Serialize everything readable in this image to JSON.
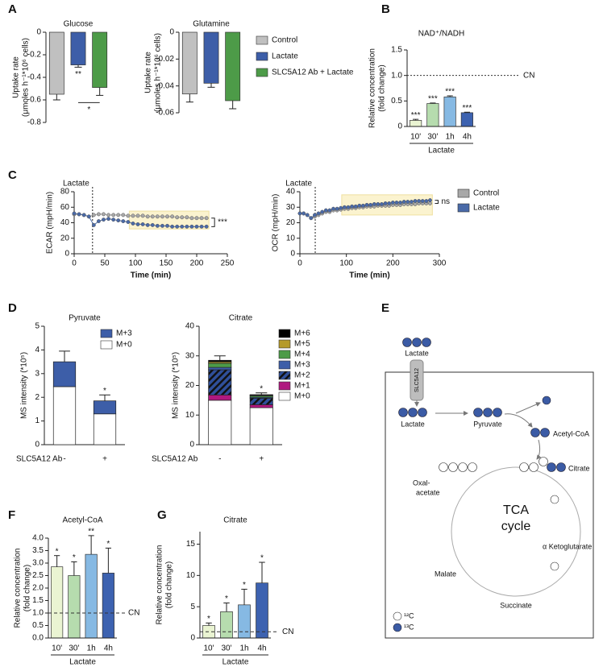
{
  "panels": [
    "A",
    "B",
    "C",
    "D",
    "E",
    "F",
    "G"
  ],
  "chart_data": [
    {
      "type": "bar",
      "title": "Glucose",
      "ylabel": [
        "Uptake rate",
        "(μmoles h⁻¹*10⁶ cells)"
      ],
      "categories": [
        null,
        null,
        null
      ],
      "values": [
        -0.55,
        -0.29,
        -0.49
      ],
      "errors": [
        0.05,
        0.02,
        0.07
      ],
      "colors": [
        "#c0c0c0",
        "#3d5ea8",
        "#4d9b48"
      ],
      "annotations": [
        null,
        "**",
        null
      ],
      "comparison": "*",
      "ylim": [
        -0.8,
        0
      ],
      "yticks": [
        0,
        -0.2,
        -0.4,
        -0.6,
        -0.8
      ]
    },
    {
      "type": "bar",
      "title": "Glutamine",
      "ylabel": [
        "Uptake rate",
        "(μmoles h⁻¹*10⁶ cells)"
      ],
      "categories": [
        null,
        null,
        null
      ],
      "values": [
        -0.046,
        -0.038,
        -0.051
      ],
      "errors": [
        0.006,
        0.003,
        0.006
      ],
      "colors": [
        "#c0c0c0",
        "#3d5ea8",
        "#4d9b48"
      ],
      "ylim": [
        -0.06,
        0
      ],
      "yticks": [
        0,
        -0.02,
        -0.04,
        -0.06
      ],
      "legend": [
        {
          "name": "Control",
          "color": "#c0c0c0"
        },
        {
          "name": "Lactate",
          "color": "#3d5ea8"
        },
        {
          "name": "SLC5A12 Ab + Lactate",
          "color": "#4d9b48"
        }
      ]
    },
    {
      "type": "bar",
      "title": "NAD⁺/NADH",
      "ylabel": [
        "Relative concentration",
        "(fold change)"
      ],
      "categories": [
        "10'",
        "30'",
        "1h",
        "4h"
      ],
      "group_label": "Lactate",
      "values": [
        0.12,
        0.45,
        0.58,
        0.27
      ],
      "errors": [
        0.02,
        0.01,
        0.02,
        0.01
      ],
      "colors": [
        "#eaf4d2",
        "#b6dcae",
        "#86b9e3",
        "#3d62b0"
      ],
      "annotations": [
        "***",
        "***",
        "***",
        "***"
      ],
      "reference": {
        "value": 1,
        "label": "CN",
        "style": "dotted"
      },
      "ylim": [
        0,
        1.5
      ],
      "yticks": [
        0,
        0.5,
        {
          "value": 1,
          "label": "1.0"
        },
        1.5
      ]
    },
    {
      "type": "line",
      "ylabel": "ECAR (mpH/min)",
      "xlabel": "Time (min)",
      "x": [
        0,
        8,
        16,
        24,
        32,
        40,
        48,
        56,
        64,
        72,
        80,
        88,
        96,
        104,
        112,
        120,
        128,
        136,
        144,
        152,
        160,
        168,
        176,
        184,
        192,
        200,
        208,
        216
      ],
      "series": [
        {
          "color": "#a8a8a8",
          "values": [
            51,
            51,
            50,
            48,
            50,
            51,
            51,
            50,
            50,
            50,
            50,
            49,
            49,
            49,
            49,
            48,
            48,
            48,
            48,
            48,
            48,
            47,
            47,
            47,
            46,
            46,
            46,
            46
          ],
          "error": 1.5
        },
        {
          "color": "#4a6aa8",
          "values": [
            52,
            51,
            50,
            48,
            37,
            42,
            44,
            45,
            44,
            43,
            42,
            41,
            39,
            38,
            38,
            37,
            37,
            36,
            36,
            36,
            35,
            35,
            35,
            35,
            35,
            35,
            35,
            35
          ],
          "error": 1.5
        }
      ],
      "event": {
        "x": 30,
        "label": "Lactate"
      },
      "highlight": {
        "x": [
          90,
          220
        ],
        "y": [
          32,
          55
        ]
      },
      "significance": "***",
      "xlim": [
        0,
        250
      ],
      "xticks": [
        0,
        50,
        100,
        150,
        200,
        250
      ],
      "ylim": [
        0,
        80
      ],
      "yticks": [
        0,
        20,
        40,
        60,
        80
      ]
    },
    {
      "type": "line",
      "ylabel": "OCR (mpH/min)",
      "xlabel": "Time (min)",
      "x": [
        0,
        8,
        16,
        24,
        32,
        40,
        48,
        56,
        64,
        72,
        80,
        88,
        96,
        104,
        112,
        120,
        128,
        136,
        144,
        152,
        160,
        168,
        176,
        184,
        192,
        200,
        208,
        216,
        224,
        232,
        240,
        248,
        256,
        264,
        272,
        280
      ],
      "series": [
        {
          "name": "Control",
          "color": "#a8a8a8",
          "values": [
            26,
            26,
            25,
            23,
            24,
            25,
            26,
            27,
            27,
            28,
            28,
            28.5,
            29,
            29,
            29.5,
            29.5,
            30,
            30,
            30.5,
            30.5,
            30.5,
            31,
            31,
            31,
            31,
            31.5,
            31.5,
            31.5,
            32,
            32,
            32,
            32,
            32.5,
            32.5,
            32.5,
            32.5
          ],
          "error": 1.2
        },
        {
          "name": "Lactate",
          "color": "#4a6aa8",
          "values": [
            26,
            26,
            25,
            23,
            25,
            26,
            27,
            28,
            28,
            29,
            29,
            29.5,
            30,
            30,
            30.5,
            30.5,
            31,
            31,
            31.5,
            31.5,
            32,
            32,
            32,
            32.5,
            32.5,
            33,
            33,
            33,
            33.5,
            33.5,
            33.5,
            34,
            34,
            34,
            34,
            34.5
          ],
          "error": 1.2
        }
      ],
      "event": {
        "x": 33,
        "label": "Lactate"
      },
      "highlight": {
        "x": [
          90,
          285
        ],
        "y": [
          25,
          38
        ]
      },
      "significance": "ns",
      "xlim": [
        0,
        300
      ],
      "xticks": [
        0,
        100,
        200,
        300
      ],
      "ylim": [
        0,
        40
      ],
      "yticks": [
        0,
        10,
        20,
        30,
        40
      ]
    },
    {
      "type": "stacked_bar",
      "title": "Pyruvate",
      "ylabel": "MS  intensity (*10⁵)",
      "xlabel": "SLC5A12 Ab",
      "categories": [
        "-",
        "+"
      ],
      "series": [
        {
          "name": "M+0",
          "color": "#ffffff",
          "values": [
            2.45,
            1.3
          ]
        },
        {
          "name": "M+3",
          "color": "#3d5ea8",
          "values": [
            1.05,
            0.55
          ]
        }
      ],
      "errors": [
        0.45,
        0.25
      ],
      "annotations": [
        null,
        "*"
      ],
      "ylim": [
        0,
        5
      ],
      "yticks": [
        0,
        1,
        2,
        3,
        4,
        5
      ]
    },
    {
      "type": "stacked_bar",
      "title": "Citrate",
      "ylabel": "MS  intensity (*10⁵)",
      "xlabel": "SLC5A12 Ab",
      "categories": [
        "-",
        "+"
      ],
      "series": [
        {
          "name": "M+0",
          "color": "#ffffff",
          "values": [
            15,
            12.5
          ]
        },
        {
          "name": "M+1",
          "color": "#b0187f",
          "values": [
            1.8,
            1.0
          ]
        },
        {
          "name": "M+2",
          "color": "#2f4f9a",
          "hatch": true,
          "values": [
            8.5,
            2.2
          ]
        },
        {
          "name": "M+3",
          "color": "#3d5ea8",
          "values": [
            0.8,
            0.3
          ]
        },
        {
          "name": "M+4",
          "color": "#4d9b48",
          "values": [
            1.4,
            0.5
          ]
        },
        {
          "name": "M+5",
          "color": "#b59a2a",
          "values": [
            0.5,
            0.2
          ]
        },
        {
          "name": "M+6",
          "color": "#000000",
          "values": [
            0.5,
            0.2
          ]
        }
      ],
      "errors": [
        1.5,
        0.6
      ],
      "annotations": [
        null,
        "*"
      ],
      "ylim": [
        0,
        40
      ],
      "yticks": [
        0,
        10,
        20,
        30,
        40
      ]
    },
    {
      "type": "bar",
      "title": "Acetyl-CoA",
      "ylabel": [
        "Relative concentration",
        "(fold change)"
      ],
      "categories": [
        "10'",
        "30'",
        "1h",
        "4h"
      ],
      "group_label": "Lactate",
      "values": [
        2.85,
        2.5,
        3.35,
        2.6
      ],
      "errors": [
        0.45,
        0.55,
        0.75,
        1.0
      ],
      "colors": [
        "#eaf4d2",
        "#b6dcae",
        "#86b9e3",
        "#3d62b0"
      ],
      "annotations": [
        "*",
        "*",
        "**",
        "*"
      ],
      "reference": {
        "value": 1,
        "label": "CN",
        "style": "dashed"
      },
      "ylim": [
        0,
        4
      ],
      "yticks": [
        {
          "value": 0,
          "label": "0.0"
        },
        0.5,
        {
          "value": 1,
          "label": "1.0"
        },
        1.5,
        {
          "value": 2,
          "label": "2.0"
        },
        2.5,
        {
          "value": 3,
          "label": "3.0"
        },
        3.5,
        {
          "value": 4,
          "label": "4.0"
        }
      ]
    },
    {
      "type": "bar",
      "title": "Citrate",
      "ylabel": [
        "Relative concentration",
        "(fold change)"
      ],
      "categories": [
        "10'",
        "30'",
        "1h",
        "4h"
      ],
      "group_label": "Lactate",
      "values": [
        2.0,
        4.2,
        5.3,
        8.8
      ],
      "errors": [
        0.4,
        1.4,
        2.5,
        3.3
      ],
      "colors": [
        "#eaf4d2",
        "#b6dcae",
        "#86b9e3",
        "#3d62b0"
      ],
      "annotations": [
        "*",
        "*",
        "*",
        "*"
      ],
      "reference": {
        "value": 1,
        "label": "CN",
        "style": "dashed"
      },
      "ylim": [
        0,
        17
      ],
      "yticks": [
        0,
        5,
        10,
        15
      ]
    }
  ],
  "diagram": {
    "outside": "Lactate",
    "transporter": "SLC5A12",
    "lactate": "Lactate",
    "pyruvate": "Pyruvate",
    "acetyl_coa": "Acetyl-CoA",
    "citrate": "Citrate",
    "oxaloacetate": [
      "Oxal-",
      "acetate"
    ],
    "cycle": [
      "TCA",
      "cycle"
    ],
    "ketoglutarate": "α Ketoglutarate",
    "succinate": "Succinate",
    "malate": "Malate",
    "legend": [
      "¹²C",
      "¹³C"
    ]
  }
}
